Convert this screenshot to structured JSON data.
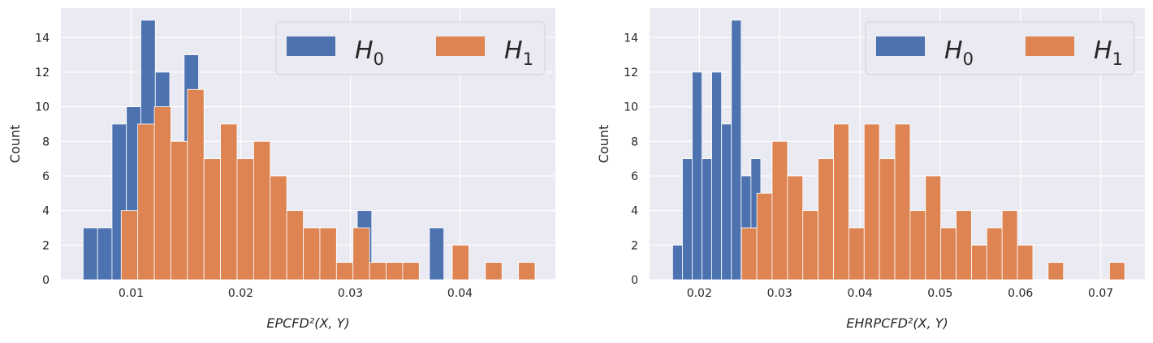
{
  "colors": {
    "H0": "#4c72b0",
    "H1": "#dd8452",
    "background": "#eaeaf2",
    "grid": "#ffffff"
  },
  "chart_data": [
    {
      "type": "histogram",
      "xlabel": "EPCFD²(X, Y)",
      "ylabel": "Count",
      "xlim": [
        0.0036,
        0.0487
      ],
      "ylim": [
        0,
        15.7
      ],
      "xticks": [
        "0.01",
        "0.02",
        "0.03",
        "0.04"
      ],
      "yticks": [
        "0",
        "2",
        "4",
        "6",
        "8",
        "10",
        "12",
        "14"
      ],
      "grid": true,
      "legend": {
        "placement": "top-right",
        "entries": [
          "H0",
          "H1"
        ],
        "labels": [
          "H",
          "H"
        ],
        "subs": [
          "0",
          "1"
        ]
      },
      "series": [
        {
          "name": "H0",
          "bin_start": 0.00563,
          "bin_width": 0.001316,
          "counts": [
            3,
            3,
            9,
            10,
            15,
            12,
            7,
            13,
            5,
            4,
            3,
            2,
            2,
            1,
            1,
            1,
            0,
            1,
            0,
            4,
            1,
            0,
            0,
            0,
            3
          ]
        },
        {
          "name": "H1",
          "bin_start": 0.0091,
          "bin_width": 0.00151,
          "counts": [
            4,
            9,
            10,
            8,
            11,
            7,
            9,
            7,
            8,
            6,
            4,
            3,
            3,
            1,
            3,
            1,
            1,
            1,
            0,
            0,
            2,
            0,
            1,
            0,
            1
          ]
        }
      ]
    },
    {
      "type": "histogram",
      "xlabel": "EHRPCFD²(X, Y)",
      "ylabel": "Count",
      "xlim": [
        0.0138,
        0.0755
      ],
      "ylim": [
        0,
        15.7
      ],
      "xticks": [
        "0.02",
        "0.03",
        "0.04",
        "0.05",
        "0.06",
        "0.07"
      ],
      "yticks": [
        "0",
        "2",
        "4",
        "6",
        "8",
        "10",
        "12",
        "14"
      ],
      "grid": true,
      "legend": {
        "placement": "top-right",
        "entries": [
          "H0",
          "H1"
        ],
        "labels": [
          "H",
          "H"
        ],
        "subs": [
          "0",
          "1"
        ]
      },
      "series": [
        {
          "name": "H0",
          "bin_start": 0.01667,
          "bin_width": 0.00122,
          "counts": [
            2,
            7,
            12,
            7,
            12,
            9,
            15,
            6,
            7,
            5,
            4,
            3,
            3,
            2,
            2,
            1,
            1,
            1,
            0,
            1,
            0,
            0,
            0,
            0,
            0
          ]
        },
        {
          "name": "H1",
          "bin_start": 0.02525,
          "bin_width": 0.00191,
          "counts": [
            3,
            5,
            8,
            6,
            4,
            7,
            9,
            3,
            9,
            7,
            9,
            4,
            6,
            3,
            4,
            2,
            3,
            4,
            2,
            0,
            1,
            0,
            0,
            0,
            1
          ]
        }
      ]
    }
  ]
}
